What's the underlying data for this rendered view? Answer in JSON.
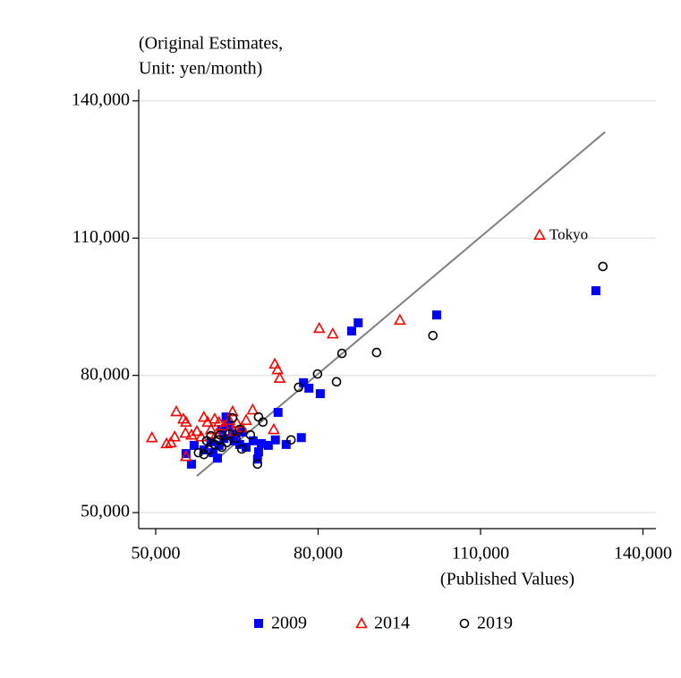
{
  "chart_data": {
    "type": "scatter",
    "y_label": [
      "(Original Estimates,",
      "Unit: yen/month)"
    ],
    "x_label": "(Published Values)",
    "xlim": [
      46860,
      142400
    ],
    "ylim": [
      46500,
      142500
    ],
    "xticks": [
      {
        "value": 50000,
        "label": "50,000"
      },
      {
        "value": 80000,
        "label": "80,000"
      },
      {
        "value": 110000,
        "label": "110,000"
      },
      {
        "value": 140000,
        "label": "140,000"
      }
    ],
    "yticks": [
      {
        "value": 50000,
        "label": "50,000"
      },
      {
        "value": 80000,
        "label": "80,000"
      },
      {
        "value": 110000,
        "label": "110,000"
      },
      {
        "value": 140000,
        "label": "140,000"
      }
    ],
    "grid": true,
    "legend": "bottom",
    "series": [
      {
        "name": "2009",
        "color": "#0000ff",
        "marker": "square",
        "x": [
          131300,
          101900,
          87400,
          86200,
          80400,
          78300,
          77300,
          76900,
          74100,
          72600,
          72100,
          70800,
          69500,
          69000,
          68800,
          68000,
          66700,
          65500,
          64500,
          63400,
          63000,
          62200,
          61400,
          60600,
          60200,
          58900,
          57100,
          56600,
          55600,
          62600,
          64200,
          65900,
          61700
        ],
        "values": [
          98500,
          93200,
          91500,
          89700,
          76000,
          77200,
          78400,
          66400,
          64900,
          71900,
          65900,
          64700,
          65100,
          63300,
          61700,
          65700,
          64300,
          64900,
          65700,
          69200,
          70900,
          68200,
          61900,
          63100,
          65500,
          63700,
          64700,
          60600,
          62900,
          66200,
          67200,
          67600,
          64700
        ]
      },
      {
        "name": "2014",
        "color": "#ff0000",
        "marker": "triangle",
        "x": [
          120900,
          95100,
          80200,
          82700,
          72000,
          72500,
          72900,
          71800,
          67900,
          49300,
          52000,
          52800,
          53500,
          53800,
          55100,
          55600,
          55500,
          55600,
          56600,
          57600,
          58400,
          58900,
          59600,
          60200,
          60900,
          61700,
          62600,
          63600,
          64200,
          65000,
          65900,
          66700,
          64500,
          61200
        ],
        "values": [
          110700,
          92100,
          90300,
          89100,
          82500,
          81300,
          79400,
          68200,
          72500,
          66400,
          65100,
          65300,
          66600,
          72100,
          70500,
          69800,
          67400,
          62300,
          67000,
          67800,
          66600,
          70900,
          69800,
          68200,
          70500,
          69800,
          69000,
          70200,
          72100,
          69600,
          68600,
          70200,
          67800,
          67200
        ]
      },
      {
        "name": "2019",
        "color": "#000000",
        "marker": "circle",
        "x": [
          132600,
          101200,
          90800,
          84400,
          83400,
          79900,
          76400,
          75000,
          69800,
          69000,
          68800,
          67500,
          65900,
          64800,
          64200,
          63600,
          63100,
          62200,
          61600,
          60900,
          60200,
          59800,
          58900,
          57900,
          59400,
          61900,
          65500
        ],
        "values": [
          103800,
          88700,
          85000,
          84800,
          78600,
          80300,
          77400,
          65900,
          69800,
          70900,
          60600,
          67000,
          63900,
          66200,
          70700,
          67200,
          65300,
          64300,
          65900,
          64900,
          66800,
          63700,
          62700,
          63100,
          65700,
          67000,
          68200
        ]
      }
    ],
    "fit_line": {
      "x": [
        57600,
        133000
      ],
      "y": [
        58000,
        133200
      ],
      "color": "#808080"
    },
    "annotations": [
      {
        "text": "Tokyo",
        "x": 120900,
        "y": 110700
      }
    ]
  }
}
